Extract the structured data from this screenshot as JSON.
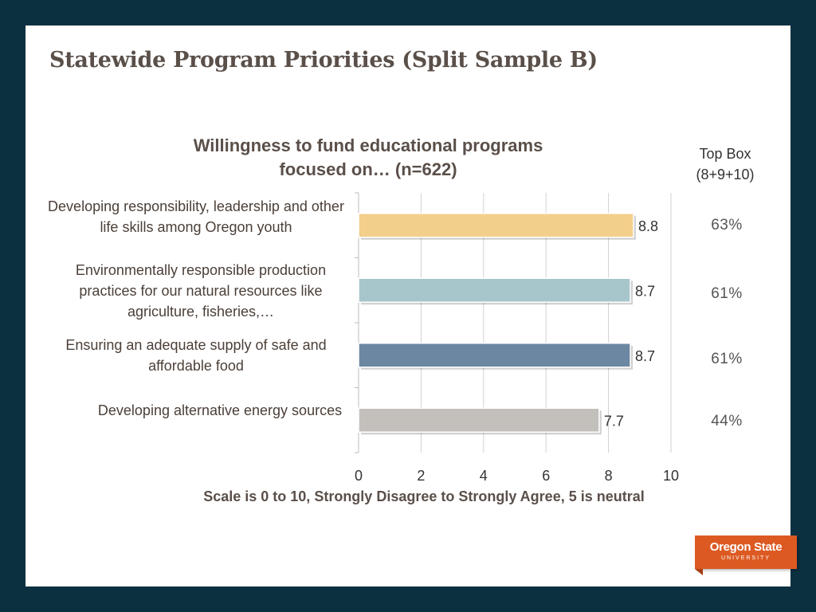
{
  "slide": {
    "title": "Statewide Program Priorities (Split Sample B)"
  },
  "chart_data": {
    "type": "bar",
    "orientation": "horizontal",
    "title": "Willingness to fund educational programs focused on… (n=622)",
    "title_lines": [
      "Willingness to fund educational programs",
      "focused on… (n=622)"
    ],
    "categories": [
      "Developing responsibility, leadership and other life skills among Oregon youth",
      "Environmentally responsible production practices for our natural resources like agriculture, fisheries,…",
      "Ensuring an adequate supply of safe and affordable food",
      "Developing alternative energy sources"
    ],
    "values": [
      8.8,
      8.7,
      8.7,
      7.7
    ],
    "data_labels": [
      "8.8",
      "8.7",
      "8.7",
      "7.7"
    ],
    "bar_colors": [
      "#f3cf8c",
      "#a7c6cc",
      "#6b87a2",
      "#c3bfbb"
    ],
    "xlim": [
      0,
      10
    ],
    "x_ticks": [
      "0",
      "2",
      "4",
      "6",
      "8",
      "10"
    ],
    "grid": true,
    "xlabel": "Scale is 0 to 10, Strongly Disagree to Strongly Agree, 5 is neutral",
    "top_box": {
      "header": [
        "Top Box",
        "(8+9+10)"
      ],
      "values": [
        "63%",
        "61%",
        "61%",
        "44%"
      ]
    }
  },
  "logo": {
    "main": "Oregon State",
    "sub": "UNIVERSITY",
    "color": "#dc5a22"
  }
}
